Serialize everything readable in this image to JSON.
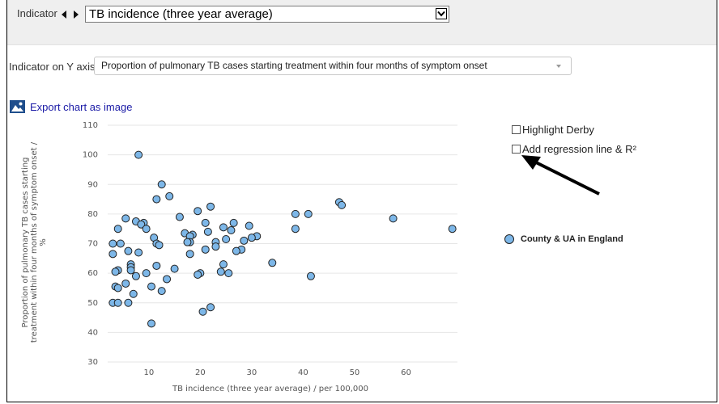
{
  "toolbar": {
    "indicator_label": "Indicator",
    "indicator_value": "TB incidence (three year average)",
    "y_axis_label": "Indicator on Y axis",
    "y_axis_value": "Proportion of pulmonary TB cases starting treatment within four months of symptom onset",
    "export_label": "Export chart as image"
  },
  "options": {
    "highlight_label": "Highlight Derby",
    "regression_label": "Add regression line & R²",
    "highlight_checked": false,
    "regression_checked": false
  },
  "chart_data": {
    "type": "scatter",
    "title": "",
    "xlabel": "TB incidence (three year average) / per 100,000",
    "ylabel_lines": [
      "Proportion of pulmonary TB cases starting",
      "treatment within four months of symptom onset /",
      "%"
    ],
    "xlim": [
      2,
      70
    ],
    "ylim": [
      30,
      110
    ],
    "xticks": [
      10,
      20,
      30,
      40,
      50,
      60
    ],
    "yticks": [
      30,
      40,
      50,
      60,
      70,
      80,
      90,
      100,
      110
    ],
    "grid": true,
    "legend_position": "right",
    "point_color": "#7db7e8",
    "series": [
      {
        "name": "County & UA in England",
        "points": [
          [
            8,
            100
          ],
          [
            12.5,
            90
          ],
          [
            14,
            86
          ],
          [
            11.5,
            85
          ],
          [
            22,
            82.5
          ],
          [
            19.5,
            81
          ],
          [
            16,
            79
          ],
          [
            5.5,
            78.5
          ],
          [
            7.5,
            77.5
          ],
          [
            9,
            77
          ],
          [
            8.5,
            76.5
          ],
          [
            9.5,
            75
          ],
          [
            4,
            75
          ],
          [
            21,
            77
          ],
          [
            26.5,
            77
          ],
          [
            29.5,
            76
          ],
          [
            24.5,
            75.5
          ],
          [
            26,
            74.5
          ],
          [
            21.5,
            74
          ],
          [
            17,
            73.5
          ],
          [
            18.5,
            73
          ],
          [
            18,
            72.5
          ],
          [
            11,
            72
          ],
          [
            25,
            71.5
          ],
          [
            31,
            72.5
          ],
          [
            30,
            72
          ],
          [
            28.5,
            71
          ],
          [
            23,
            70.5
          ],
          [
            18,
            70.5
          ],
          [
            17.5,
            70.5
          ],
          [
            11.5,
            70
          ],
          [
            3,
            70
          ],
          [
            4.5,
            70
          ],
          [
            12,
            69.5
          ],
          [
            23,
            69
          ],
          [
            21,
            68
          ],
          [
            28,
            68
          ],
          [
            27,
            67.5
          ],
          [
            6,
            67.5
          ],
          [
            8,
            67
          ],
          [
            3,
            66.5
          ],
          [
            18,
            66.5
          ],
          [
            6.5,
            63
          ],
          [
            24.5,
            63
          ],
          [
            34,
            63.5
          ],
          [
            6.5,
            62
          ],
          [
            11.5,
            62.5
          ],
          [
            15,
            61.5
          ],
          [
            6.5,
            61
          ],
          [
            4,
            61
          ],
          [
            3.5,
            60.5
          ],
          [
            9.5,
            60
          ],
          [
            24,
            60.5
          ],
          [
            25.5,
            60
          ],
          [
            20,
            60
          ],
          [
            19.5,
            59.5
          ],
          [
            7.5,
            59
          ],
          [
            41.5,
            59
          ],
          [
            13.5,
            58
          ],
          [
            5.5,
            56.5
          ],
          [
            3.5,
            55.5
          ],
          [
            4,
            55
          ],
          [
            10.5,
            55.5
          ],
          [
            12.5,
            54
          ],
          [
            7,
            53
          ],
          [
            3,
            50
          ],
          [
            4,
            50
          ],
          [
            6,
            50
          ],
          [
            22,
            48.5
          ],
          [
            20.5,
            47
          ],
          [
            10.5,
            43
          ],
          [
            38.5,
            80
          ],
          [
            41,
            80
          ],
          [
            47,
            84
          ],
          [
            47.5,
            83
          ],
          [
            57.5,
            78.5
          ],
          [
            38.5,
            75
          ],
          [
            69,
            75
          ]
        ]
      }
    ]
  }
}
